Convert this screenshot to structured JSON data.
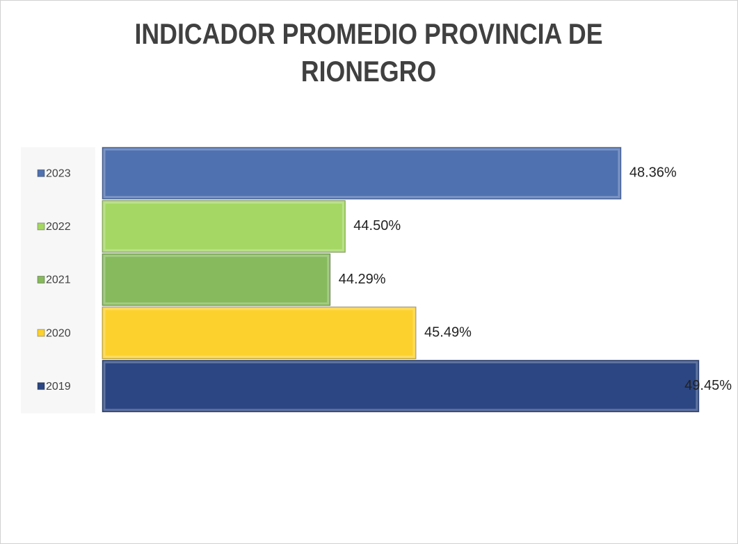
{
  "chart_data": {
    "type": "bar",
    "orientation": "horizontal",
    "title": "INDICADOR PROMEDIO PROVINCIA DE RIONEGRO",
    "categories": [
      "2023",
      "2022",
      "2021",
      "2020",
      "2019"
    ],
    "values": [
      48.36,
      44.5,
      44.29,
      45.49,
      49.45
    ],
    "value_labels": [
      "48.36%",
      "44.50%",
      "44.29%",
      "45.49%",
      "49.45%"
    ],
    "colors": [
      "#4f71b0",
      "#a4d763",
      "#86ba5c",
      "#fdd12d",
      "#2b4682"
    ],
    "xlim": [
      41.1,
      49.5
    ],
    "grid": false
  }
}
